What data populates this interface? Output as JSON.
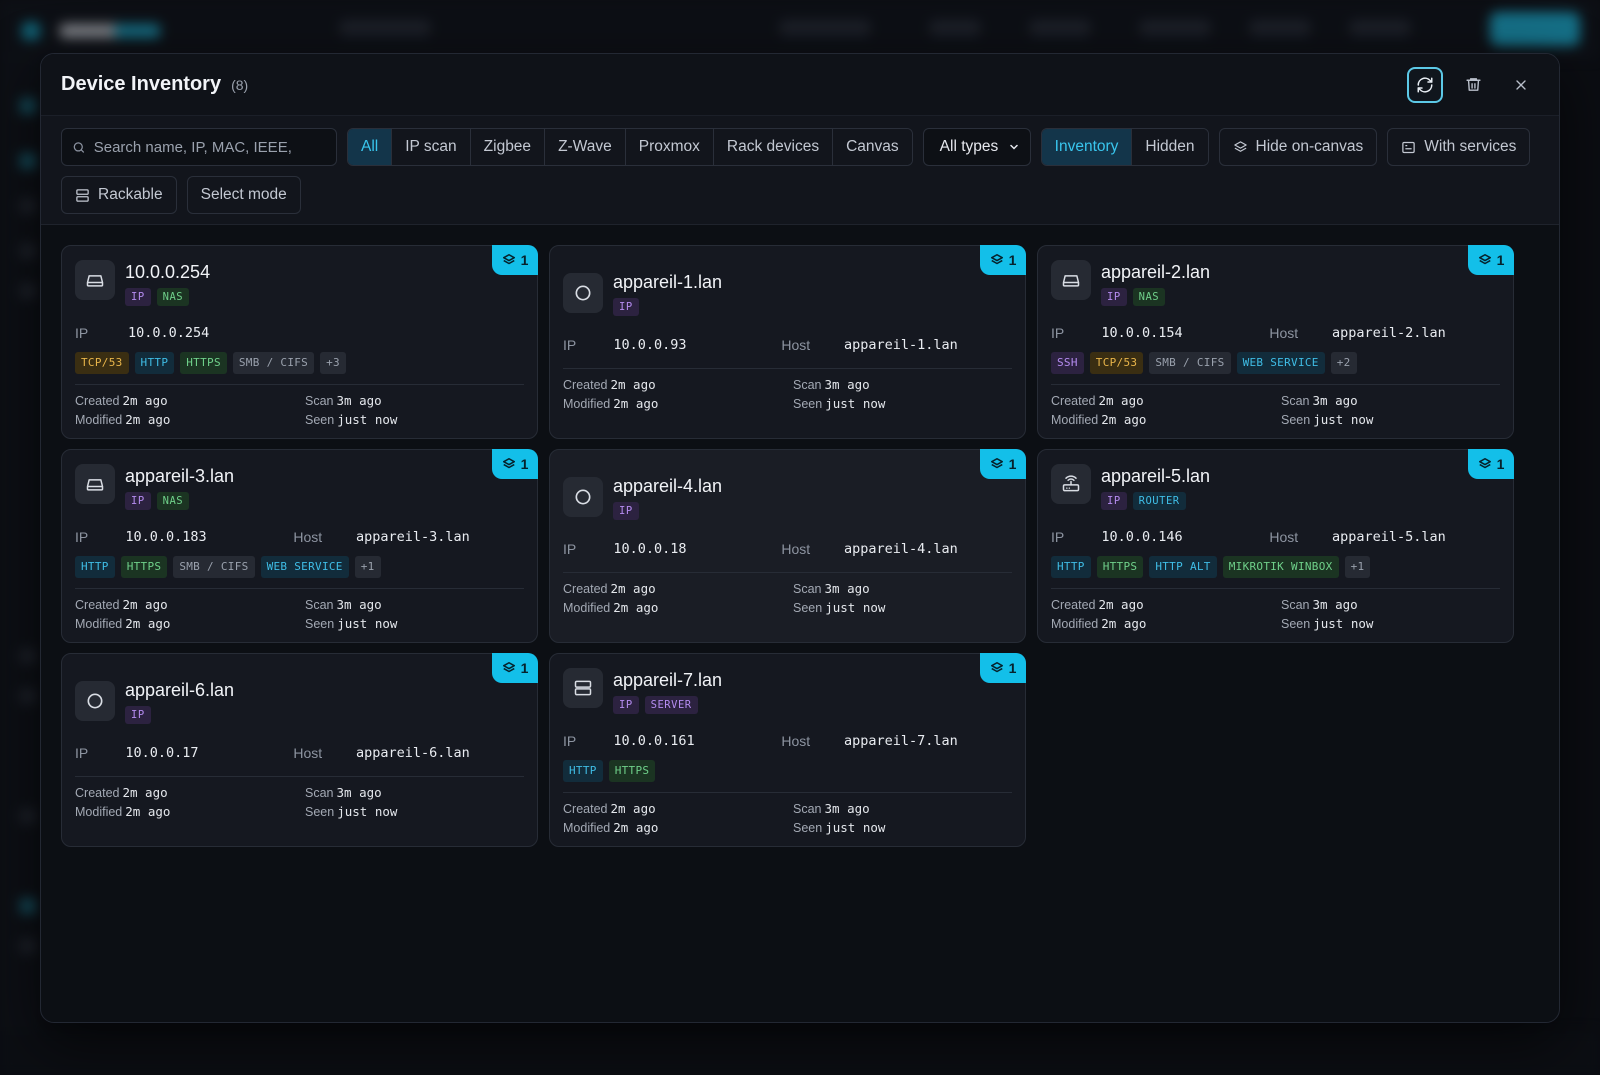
{
  "modal": {
    "title": "Device Inventory",
    "count": "(8)"
  },
  "toolbar": {
    "search_placeholder": "Search name, IP, MAC, IEEE,",
    "source_tabs": [
      "All",
      "IP scan",
      "Zigbee",
      "Z-Wave",
      "Proxmox",
      "Rack devices",
      "Canvas"
    ],
    "active_source": "All",
    "type_select": "All types",
    "view_tabs": [
      "Inventory",
      "Hidden"
    ],
    "active_view": "Inventory",
    "hide_on_canvas": "Hide on-canvas",
    "with_services": "With services",
    "rackable": "Rackable",
    "select_mode": "Select mode"
  },
  "labels": {
    "ip": "IP",
    "host": "Host",
    "created": "Created",
    "modified": "Modified",
    "scan": "Scan",
    "seen": "Seen"
  },
  "devices": [
    {
      "name": "10.0.0.254",
      "icon": "nas-icon",
      "badge": "1",
      "tags": [
        {
          "t": "IP",
          "c": "ip"
        },
        {
          "t": "NAS",
          "c": "nas"
        }
      ],
      "ip": "10.0.0.254",
      "host": "",
      "services": [
        {
          "t": "TCP/53",
          "c": "s-yellow"
        },
        {
          "t": "HTTP",
          "c": "s-blue"
        },
        {
          "t": "HTTPS",
          "c": "s-green"
        },
        {
          "t": "SMB / CIFS",
          "c": "s-gray"
        },
        {
          "t": "+3",
          "c": "s-gray"
        }
      ],
      "created": "2m ago",
      "modified": "2m ago",
      "scan": "3m ago",
      "seen": "just now"
    },
    {
      "name": "appareil-1.lan",
      "icon": "circle-icon",
      "badge": "1",
      "tags": [
        {
          "t": "IP",
          "c": "ip"
        }
      ],
      "ip": "10.0.0.93",
      "host": "appareil-1.lan",
      "services": [],
      "created": "2m ago",
      "modified": "2m ago",
      "scan": "3m ago",
      "seen": "just now"
    },
    {
      "name": "appareil-2.lan",
      "icon": "nas-icon",
      "badge": "1",
      "tags": [
        {
          "t": "IP",
          "c": "ip"
        },
        {
          "t": "NAS",
          "c": "nas"
        }
      ],
      "ip": "10.0.0.154",
      "host": "appareil-2.lan",
      "services": [
        {
          "t": "SSH",
          "c": "s-purple"
        },
        {
          "t": "TCP/53",
          "c": "s-yellow"
        },
        {
          "t": "SMB / CIFS",
          "c": "s-gray"
        },
        {
          "t": "WEB SERVICE",
          "c": "s-blue"
        },
        {
          "t": "+2",
          "c": "s-gray"
        }
      ],
      "created": "2m ago",
      "modified": "2m ago",
      "scan": "3m ago",
      "seen": "just now"
    },
    {
      "name": "appareil-3.lan",
      "icon": "nas-icon",
      "badge": "1",
      "tags": [
        {
          "t": "IP",
          "c": "ip"
        },
        {
          "t": "NAS",
          "c": "nas"
        }
      ],
      "ip": "10.0.0.183",
      "host": "appareil-3.lan",
      "services": [
        {
          "t": "HTTP",
          "c": "s-blue"
        },
        {
          "t": "HTTPS",
          "c": "s-green"
        },
        {
          "t": "SMB / CIFS",
          "c": "s-gray"
        },
        {
          "t": "WEB SERVICE",
          "c": "s-blue"
        },
        {
          "t": "+1",
          "c": "s-gray"
        }
      ],
      "created": "2m ago",
      "modified": "2m ago",
      "scan": "3m ago",
      "seen": "just now"
    },
    {
      "name": "appareil-4.lan",
      "icon": "circle-icon",
      "badge": "1",
      "tags": [
        {
          "t": "IP",
          "c": "ip"
        }
      ],
      "ip": "10.0.0.18",
      "host": "appareil-4.lan",
      "services": [],
      "created": "2m ago",
      "modified": "2m ago",
      "scan": "3m ago",
      "seen": "just now"
    },
    {
      "name": "appareil-5.lan",
      "icon": "router-icon",
      "badge": "1",
      "tags": [
        {
          "t": "IP",
          "c": "ip"
        },
        {
          "t": "ROUTER",
          "c": "router"
        }
      ],
      "ip": "10.0.0.146",
      "host": "appareil-5.lan",
      "services": [
        {
          "t": "HTTP",
          "c": "s-blue"
        },
        {
          "t": "HTTPS",
          "c": "s-green"
        },
        {
          "t": "HTTP ALT",
          "c": "s-blue"
        },
        {
          "t": "MIKROTIK WINBOX",
          "c": "s-green"
        },
        {
          "t": "+1",
          "c": "s-gray"
        }
      ],
      "created": "2m ago",
      "modified": "2m ago",
      "scan": "3m ago",
      "seen": "just now"
    },
    {
      "name": "appareil-6.lan",
      "icon": "circle-icon",
      "badge": "1",
      "tags": [
        {
          "t": "IP",
          "c": "ip"
        }
      ],
      "ip": "10.0.0.17",
      "host": "appareil-6.lan",
      "services": [],
      "created": "2m ago",
      "modified": "2m ago",
      "scan": "3m ago",
      "seen": "just now"
    },
    {
      "name": "appareil-7.lan",
      "icon": "server-icon",
      "badge": "1",
      "tags": [
        {
          "t": "IP",
          "c": "ip"
        },
        {
          "t": "SERVER",
          "c": "server"
        }
      ],
      "ip": "10.0.0.161",
      "host": "appareil-7.lan",
      "services": [
        {
          "t": "HTTP",
          "c": "s-blue"
        },
        {
          "t": "HTTPS",
          "c": "s-green"
        }
      ],
      "created": "2m ago",
      "modified": "2m ago",
      "scan": "3m ago",
      "seen": "just now"
    }
  ]
}
